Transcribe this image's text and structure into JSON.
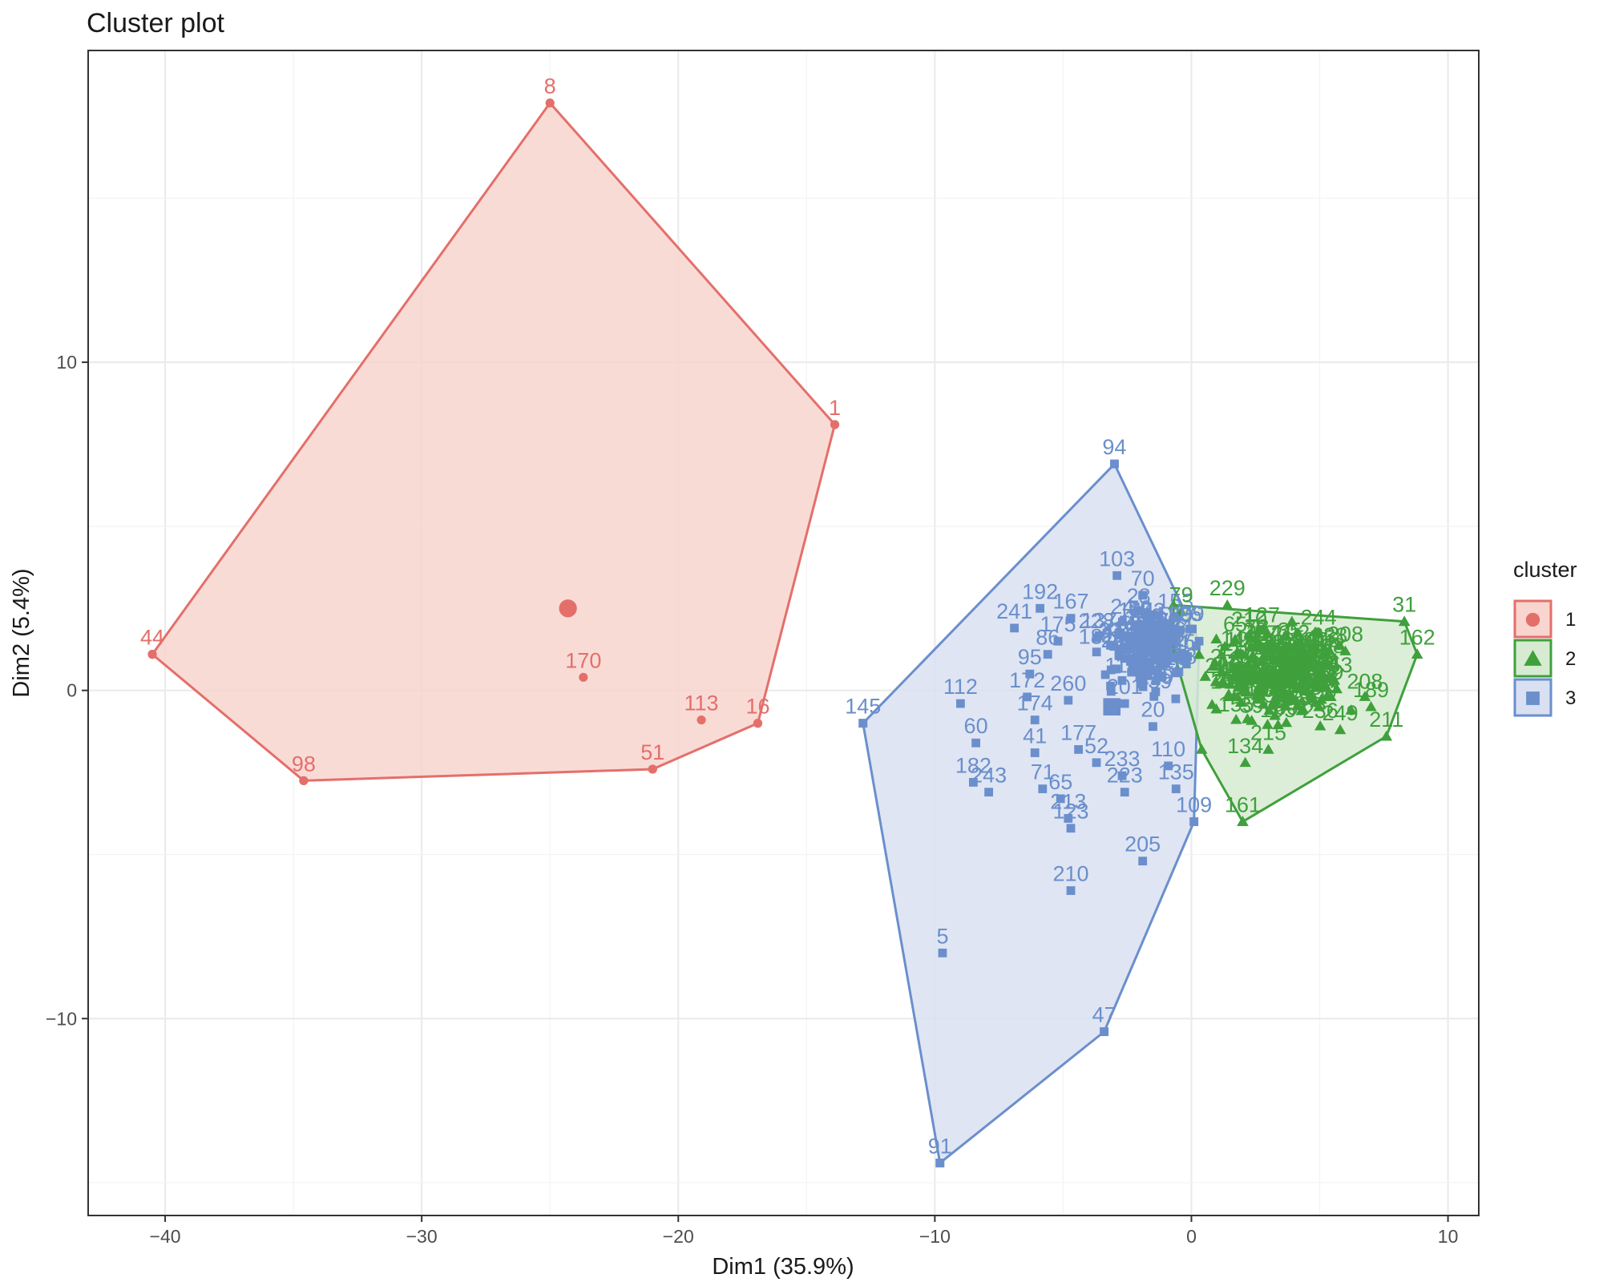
{
  "colors": {
    "cluster1": "#e46f6a",
    "cluster2": "#3fa03c",
    "cluster3": "#6a8fcc",
    "fill1": "#f8d5cf",
    "fill2": "#d6ebd1",
    "fill3": "#d9e0f1",
    "grid": "#ebebeb",
    "panel_border": "#333333"
  },
  "chart_data": {
    "type": "scatter",
    "title": "Cluster plot",
    "xlabel": "Dim1 (35.9%)",
    "ylabel": "Dim2 (5.4%)",
    "xlim": [
      -43,
      11.2
    ],
    "ylim": [
      -16,
      19.5
    ],
    "xticks": [
      -40,
      -30,
      -20,
      -10,
      0,
      10
    ],
    "yticks": [
      -10,
      0,
      10
    ],
    "xtick_labels": [
      "−40",
      "−30",
      "−20",
      "−10",
      "0",
      "10"
    ],
    "ytick_labels": [
      "−10",
      "0",
      "10"
    ],
    "legend": {
      "title": "cluster",
      "position": "right",
      "entries": [
        {
          "label": "1",
          "shape": "circle",
          "color_key": "cluster1",
          "fill_key": "fill1"
        },
        {
          "label": "2",
          "shape": "triangle",
          "color_key": "cluster2",
          "fill_key": "fill2"
        },
        {
          "label": "3",
          "shape": "square",
          "color_key": "cluster3",
          "fill_key": "fill3"
        }
      ]
    },
    "clusters": [
      {
        "name": "1",
        "shape": "circle",
        "color_key": "cluster1",
        "fill_key": "fill1",
        "centroid": [
          -24.3,
          2.5
        ],
        "hull": [
          [
            -25,
            17.9
          ],
          [
            -13.9,
            8.1
          ],
          [
            -16.9,
            -1.0
          ],
          [
            -21,
            -2.4
          ],
          [
            -34.6,
            -2.75
          ],
          [
            -40.5,
            1.1
          ]
        ],
        "points": [
          {
            "label": "8",
            "x": -25,
            "y": 17.9
          },
          {
            "label": "1",
            "x": -13.9,
            "y": 8.1
          },
          {
            "label": "44",
            "x": -40.5,
            "y": 1.1
          },
          {
            "label": "170",
            "x": -23.7,
            "y": 0.4
          },
          {
            "label": "113",
            "x": -19.1,
            "y": -0.9
          },
          {
            "label": "16",
            "x": -16.9,
            "y": -1.0
          },
          {
            "label": "51",
            "x": -21,
            "y": -2.4
          },
          {
            "label": "98",
            "x": -34.6,
            "y": -2.75
          }
        ]
      },
      {
        "name": "3",
        "shape": "square",
        "color_key": "cluster3",
        "fill_key": "fill3",
        "centroid": [
          -3.1,
          -0.5
        ],
        "hull": [
          [
            -3,
            6.9
          ],
          [
            0.3,
            1.5
          ],
          [
            0.1,
            -4.0
          ],
          [
            -3.4,
            -10.4
          ],
          [
            -9.8,
            -14.4
          ],
          [
            -12.8,
            -1.0
          ]
        ],
        "points": [
          {
            "label": "94",
            "x": -3,
            "y": 6.9
          },
          {
            "label": "103",
            "x": -2.9,
            "y": 3.5
          },
          {
            "label": "70",
            "x": -1.9,
            "y": 2.9
          },
          {
            "label": "192",
            "x": -5.9,
            "y": 2.5
          },
          {
            "label": "167",
            "x": -4.7,
            "y": 2.2
          },
          {
            "label": "241",
            "x": -6.9,
            "y": 1.9
          },
          {
            "label": "59",
            "x": -2.0,
            "y": 2.0
          },
          {
            "label": "175",
            "x": -5.2,
            "y": 1.5
          },
          {
            "label": "86",
            "x": -5.6,
            "y": 1.1
          },
          {
            "label": "228",
            "x": -3.7,
            "y": 1.6
          },
          {
            "label": "95",
            "x": -6.3,
            "y": 0.5
          },
          {
            "label": "112",
            "x": -9.0,
            "y": -0.4
          },
          {
            "label": "145",
            "x": -12.8,
            "y": -1.0
          },
          {
            "label": "60",
            "x": -8.4,
            "y": -1.6
          },
          {
            "label": "172",
            "x": -6.4,
            "y": -0.2
          },
          {
            "label": "174",
            "x": -6.1,
            "y": -0.9
          },
          {
            "label": "260",
            "x": -4.8,
            "y": -0.3
          },
          {
            "label": "41",
            "x": -6.1,
            "y": -1.9
          },
          {
            "label": "177",
            "x": -4.4,
            "y": -1.8
          },
          {
            "label": "52",
            "x": -3.7,
            "y": -2.2
          },
          {
            "label": "201",
            "x": -2.6,
            "y": -0.4
          },
          {
            "label": "20",
            "x": -1.5,
            "y": -1.1
          },
          {
            "label": "110",
            "x": -0.9,
            "y": -2.3
          },
          {
            "label": "182",
            "x": -8.5,
            "y": -2.8
          },
          {
            "label": "243",
            "x": -7.9,
            "y": -3.1
          },
          {
            "label": "71",
            "x": -5.8,
            "y": -3.0
          },
          {
            "label": "65",
            "x": -5.1,
            "y": -3.3
          },
          {
            "label": "213",
            "x": -4.8,
            "y": -3.9
          },
          {
            "label": "123",
            "x": -4.7,
            "y": -4.2
          },
          {
            "label": "233",
            "x": -2.7,
            "y": -2.6
          },
          {
            "label": "223",
            "x": -2.6,
            "y": -3.1
          },
          {
            "label": "135",
            "x": -0.6,
            "y": -3.0
          },
          {
            "label": "109",
            "x": 0.1,
            "y": -4.0
          },
          {
            "label": "205",
            "x": -1.9,
            "y": -5.2
          },
          {
            "label": "210",
            "x": -4.7,
            "y": -6.1
          },
          {
            "label": "5",
            "x": -9.7,
            "y": -8.0
          },
          {
            "label": "47",
            "x": -3.4,
            "y": -10.4
          },
          {
            "label": "91",
            "x": -9.8,
            "y": -14.4
          }
        ]
      },
      {
        "name": "2",
        "shape": "triangle",
        "color_key": "cluster2",
        "fill_key": "fill2",
        "centroid": [
          3.0,
          0.4
        ],
        "hull": [
          [
            -0.7,
            2.6
          ],
          [
            8.3,
            2.1
          ],
          [
            8.8,
            1.1
          ],
          [
            7.6,
            -1.4
          ],
          [
            2.0,
            -4.0
          ],
          [
            0.4,
            -1.8
          ],
          [
            -0.7,
            1.2
          ]
        ],
        "points": [
          {
            "label": "229",
            "x": 1.4,
            "y": 2.6
          },
          {
            "label": "79",
            "x": -0.4,
            "y": 2.4
          },
          {
            "label": "31",
            "x": 8.3,
            "y": 2.1
          },
          {
            "label": "162",
            "x": 8.8,
            "y": 1.1
          },
          {
            "label": "208",
            "x": 6.0,
            "y": 1.2
          },
          {
            "label": "189",
            "x": 7.0,
            "y": -0.5
          },
          {
            "label": "211",
            "x": 7.6,
            "y": -1.4
          },
          {
            "label": "249",
            "x": 5.8,
            "y": -1.2
          },
          {
            "label": "161",
            "x": 2.0,
            "y": -4.0
          },
          {
            "label": "134",
            "x": 2.1,
            "y": -2.2
          },
          {
            "label": "215",
            "x": 3.0,
            "y": -1.8
          }
        ]
      }
    ]
  }
}
